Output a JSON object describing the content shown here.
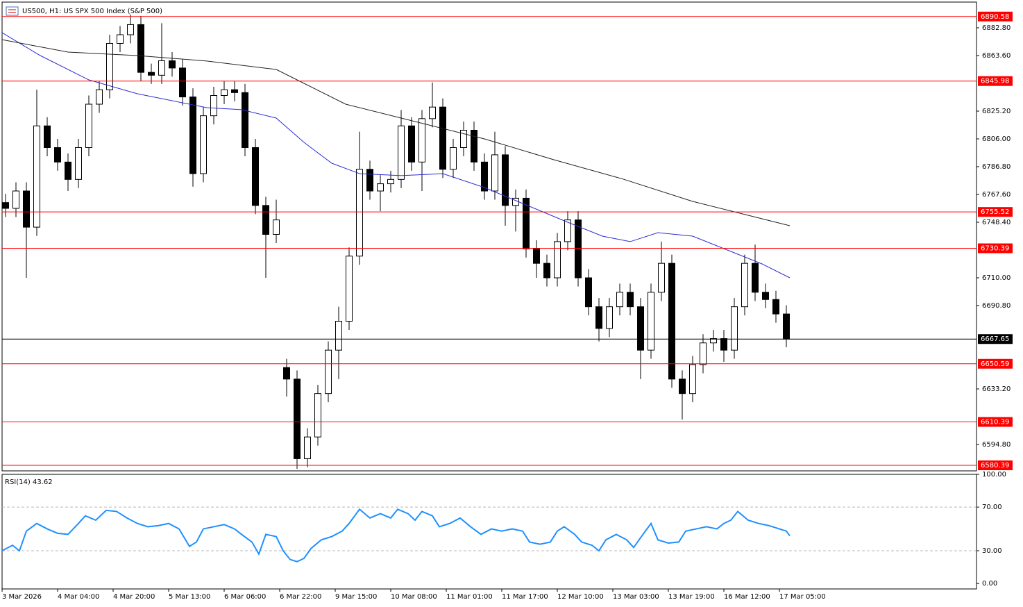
{
  "chart_data": [
    {
      "type": "candlestick",
      "title": "US500, H1:  US SPX 500 Index (S&P 500)",
      "x": [
        1,
        4,
        7,
        10,
        13,
        16,
        19,
        22,
        25,
        28,
        31,
        34,
        37,
        40,
        43,
        46,
        49,
        52,
        55,
        58,
        61,
        64,
        67,
        70,
        73,
        76,
        79,
        82,
        85,
        88,
        91,
        94,
        97,
        100,
        103,
        106,
        109,
        112,
        115,
        118,
        121,
        124,
        127,
        130,
        133,
        136,
        139,
        142,
        145,
        148,
        151,
        154,
        157,
        160,
        163,
        166,
        169,
        172,
        175,
        178,
        181,
        184,
        187,
        190,
        193,
        196,
        199,
        202,
        205,
        208,
        211,
        214,
        217,
        220,
        223,
        226
      ],
      "open": [
        6762,
        6758,
        6770,
        6745,
        6815,
        6800,
        6790,
        6778,
        6800,
        6830,
        6840,
        6872,
        6878,
        6885,
        6852,
        6850,
        6860,
        6855,
        6835,
        6782,
        6822,
        6836,
        6840,
        6838,
        6800,
        6760,
        6740,
        6648,
        6640,
        6585,
        6600,
        6630,
        6660,
        6680,
        6725,
        6785,
        6770,
        6775,
        6778,
        6815,
        6790,
        6820,
        6828,
        6785,
        6800,
        6812,
        6790,
        6770,
        6795,
        6760,
        6765,
        6730,
        6720,
        6710,
        6735,
        6750,
        6710,
        6690,
        6675,
        6690,
        6700,
        6690,
        6660,
        6700,
        6720,
        6640,
        6630,
        6650,
        6665,
        6668,
        6660,
        6690,
        6720,
        6700,
        6695,
        6685
      ],
      "high": [
        6768,
        6776,
        6776,
        6840,
        6821,
        6806,
        6796,
        6806,
        6836,
        6846,
        6878,
        6884,
        6892,
        6891,
        6858,
        6886,
        6866,
        6861,
        6841,
        6828,
        6842,
        6846,
        6846,
        6844,
        6806,
        6766,
        6764,
        6654,
        6646,
        6606,
        6636,
        6666,
        6690,
        6731,
        6811,
        6791,
        6781,
        6784,
        6826,
        6821,
        6826,
        6845,
        6834,
        6806,
        6818,
        6818,
        6796,
        6811,
        6801,
        6771,
        6771,
        6736,
        6726,
        6741,
        6756,
        6756,
        6716,
        6696,
        6696,
        6706,
        6706,
        6696,
        6706,
        6735,
        6726,
        6646,
        6656,
        6671,
        6674,
        6674,
        6696,
        6726,
        6733,
        6706,
        6701,
        6691
      ],
      "low": [
        6752,
        6752,
        6710,
        6739,
        6794,
        6784,
        6770,
        6772,
        6794,
        6824,
        6834,
        6866,
        6872,
        6846,
        6844,
        6844,
        6849,
        6829,
        6773,
        6776,
        6816,
        6830,
        6832,
        6794,
        6754,
        6710,
        6734,
        6628,
        6578,
        6579,
        6594,
        6624,
        6640,
        6674,
        6719,
        6764,
        6756,
        6769,
        6772,
        6784,
        6770,
        6814,
        6779,
        6779,
        6794,
        6784,
        6764,
        6764,
        6746,
        6742,
        6724,
        6710,
        6704,
        6704,
        6729,
        6704,
        6684,
        6666,
        6669,
        6684,
        6684,
        6640,
        6654,
        6694,
        6634,
        6612,
        6624,
        6644,
        6659,
        6652,
        6654,
        6684,
        6694,
        6689,
        6679,
        6662
      ],
      "close": [
        6758,
        6770,
        6745,
        6815,
        6800,
        6790,
        6778,
        6800,
        6830,
        6840,
        6872,
        6878,
        6885,
        6852,
        6850,
        6860,
        6855,
        6835,
        6782,
        6822,
        6836,
        6840,
        6838,
        6800,
        6760,
        6740,
        6750,
        6640,
        6585,
        6600,
        6630,
        6660,
        6680,
        6725,
        6785,
        6770,
        6775,
        6778,
        6815,
        6790,
        6820,
        6828,
        6785,
        6800,
        6812,
        6790,
        6770,
        6795,
        6760,
        6765,
        6730,
        6720,
        6710,
        6735,
        6750,
        6710,
        6690,
        6675,
        6690,
        6700,
        6690,
        6660,
        6700,
        6720,
        6640,
        6630,
        6650,
        6665,
        6668,
        6660,
        6690,
        6720,
        6700,
        6695,
        6685,
        6667.65
      ],
      "up_color": "#ffffff",
      "down_color": "#000000",
      "lines": [
        {
          "color": "#2b2bd6",
          "x": [
            0,
            11,
            25,
            39,
            59,
            69,
            79,
            87,
            95,
            103,
            115,
            127,
            139,
            151,
            163,
            173,
            181,
            189,
            199,
            209,
            219,
            227
          ],
          "values": [
            6879.44,
            6863.6,
            6846.8,
            6837.2,
            6827.6,
            6826.2,
            6820.4,
            6803.6,
            6789.2,
            6782.0,
            6780.6,
            6782.0,
            6772.4,
            6760.4,
            6748.4,
            6738.8,
            6735.0,
            6741.2,
            6738.8,
            6729.2,
            6719.6,
            6710.0
          ]
        },
        {
          "color": "#222222",
          "x": [
            0,
            19,
            39,
            59,
            79,
            85,
            99,
            119,
            139,
            159,
            179,
            199,
            215,
            227
          ],
          "values": [
            6874.6,
            6866.0,
            6863.6,
            6859.8,
            6854.0,
            6846.8,
            6830.0,
            6818.0,
            6806.0,
            6791.6,
            6778.2,
            6762.8,
            6753.2,
            6746.0
          ]
        }
      ],
      "hlines": [
        6890.58,
        6845.98,
        6755.52,
        6730.39,
        6650.59,
        6610.39,
        6580.39
      ],
      "hline_color": "#ff0000",
      "last_price": 6667.65,
      "ylim": [
        6576.56,
        6900.56
      ],
      "yticks": [
        {
          "value": 6882.8,
          "label": "6882.80"
        },
        {
          "value": 6863.6,
          "label": "6863.60"
        },
        {
          "value": 6825.2,
          "label": "6825.20"
        },
        {
          "value": 6806,
          "label": "6806.00"
        },
        {
          "value": 6786.8,
          "label": "6786.80"
        },
        {
          "value": 6767.6,
          "label": "6767.60"
        },
        {
          "value": 6748.4,
          "label": "6748.40"
        },
        {
          "value": 6710,
          "label": "6710.00"
        },
        {
          "value": 6690.8,
          "label": "6690.80"
        },
        {
          "value": 6633.2,
          "label": "6633.20"
        },
        {
          "value": 6594.8,
          "label": "6594.80"
        }
      ],
      "xlim": [
        0,
        280.8
      ],
      "xticks": [
        {
          "value": 0,
          "label": "3 Mar 2026"
        },
        {
          "value": 16,
          "label": "4 Mar 04:00"
        },
        {
          "value": 32,
          "label": "4 Mar 20:00"
        },
        {
          "value": 48,
          "label": "5 Mar 13:00"
        },
        {
          "value": 64,
          "label": "6 Mar 06:00"
        },
        {
          "value": 80,
          "label": "6 Mar 22:00"
        },
        {
          "value": 96,
          "label": "9 Mar 15:00"
        },
        {
          "value": 112,
          "label": "10 Mar 08:00"
        },
        {
          "value": 128,
          "label": "11 Mar 01:00"
        },
        {
          "value": 144,
          "label": "11 Mar 17:00"
        },
        {
          "value": 160,
          "label": "12 Mar 10:00"
        },
        {
          "value": 176,
          "label": "13 Mar 03:00"
        },
        {
          "value": 192,
          "label": "13 Mar 19:00"
        },
        {
          "value": 208,
          "label": "16 Mar 12:00"
        },
        {
          "value": 224,
          "label": "17 Mar 05:00"
        }
      ]
    },
    {
      "type": "line",
      "title": "RSI(14) 43.62",
      "color": "#1e90ff",
      "x": [
        0,
        3,
        5,
        7,
        10,
        13,
        16,
        19,
        22,
        24,
        27,
        30,
        33,
        36,
        39,
        42,
        45,
        48,
        51,
        54,
        56,
        58,
        61,
        64,
        67,
        69,
        72,
        74,
        76,
        79,
        81,
        83,
        85,
        87,
        89,
        92,
        95,
        98,
        100,
        103,
        106,
        109,
        112,
        114,
        117,
        119,
        121,
        124,
        126,
        129,
        132,
        135,
        138,
        141,
        144,
        147,
        150,
        152,
        155,
        158,
        160,
        162,
        165,
        167,
        170,
        172,
        174,
        177,
        180,
        182,
        184,
        187,
        189,
        192,
        195,
        197,
        200,
        203,
        206,
        208,
        210,
        212,
        215,
        218,
        221,
        224,
        226,
        227
      ],
      "values": [
        30,
        35,
        30,
        48,
        55,
        50,
        46,
        45,
        55,
        62,
        58,
        67,
        66,
        60,
        55,
        52,
        53,
        55,
        50,
        34,
        38,
        50,
        52,
        54,
        50,
        45,
        38,
        27,
        45,
        43,
        30,
        22,
        20,
        23,
        32,
        40,
        43,
        48,
        55,
        68,
        60,
        64,
        60,
        68,
        64,
        58,
        66,
        62,
        52,
        55,
        60,
        52,
        45,
        50,
        48,
        50,
        48,
        38,
        36,
        38,
        48,
        52,
        45,
        38,
        35,
        30,
        40,
        45,
        40,
        33,
        42,
        55,
        40,
        37,
        38,
        48,
        50,
        52,
        50,
        55,
        58,
        66,
        58,
        55,
        53,
        50,
        48,
        43.62
      ],
      "levels": [
        70,
        30
      ],
      "ylim": [
        -5,
        100
      ],
      "yticks": [
        {
          "value": 100,
          "label": "100.00"
        },
        {
          "value": 70,
          "label": "70.00"
        },
        {
          "value": 30,
          "label": "30.00"
        },
        {
          "value": 0,
          "label": "0.00"
        }
      ]
    }
  ]
}
